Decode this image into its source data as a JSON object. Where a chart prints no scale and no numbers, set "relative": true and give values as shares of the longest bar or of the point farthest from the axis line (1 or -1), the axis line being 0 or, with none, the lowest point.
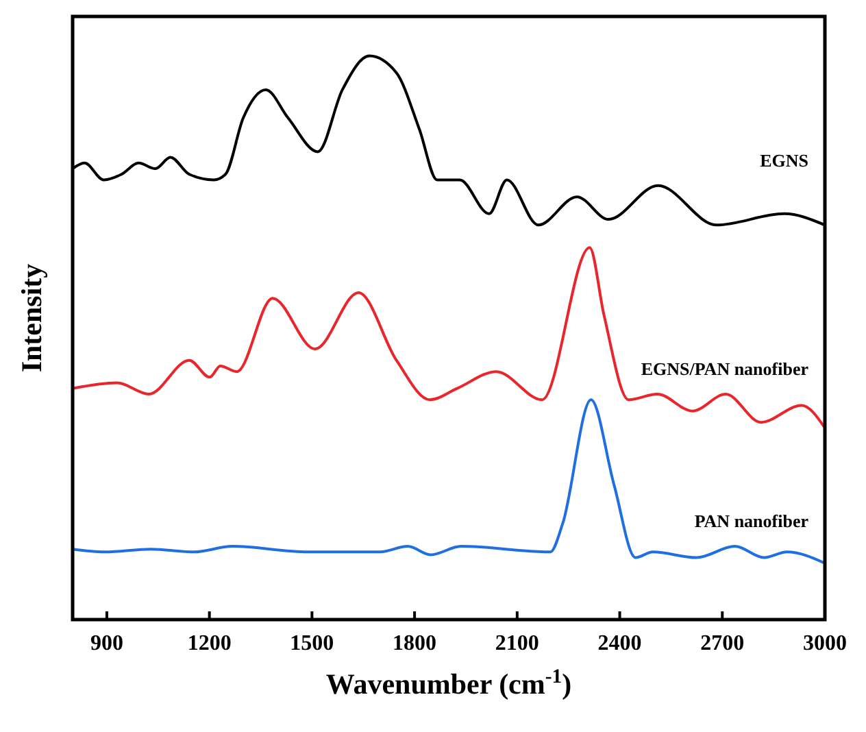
{
  "chart_data": {
    "type": "line",
    "relative": true,
    "xlabel": "Wavenumber (cm$^{-1}$)",
    "ylabel": "Intensity",
    "xlim": [
      800,
      3000
    ],
    "xticks": [
      900,
      1200,
      1500,
      1800,
      2100,
      2400,
      2700,
      3000
    ],
    "grid": false,
    "legend": false,
    "marker": "none",
    "line_style": "solid",
    "series": [
      {
        "name": "EGNS",
        "color": "#000000",
        "x": [
          800,
          835,
          891,
          943,
          993,
          1042,
          1086,
          1141,
          1213,
          1247,
          1299,
          1365,
          1430,
          1517,
          1589,
          1668,
          1747,
          1814,
          1866,
          1932,
          2018,
          2070,
          2162,
          2275,
          2367,
          2512,
          2683,
          2881,
          3000
        ],
        "values": [
          0.8,
          0.81,
          0.78,
          0.79,
          0.81,
          0.8,
          0.82,
          0.79,
          0.78,
          0.79,
          0.89,
          0.94,
          0.89,
          0.83,
          0.94,
          1.0,
          0.97,
          0.87,
          0.78,
          0.78,
          0.72,
          0.78,
          0.7,
          0.75,
          0.71,
          0.77,
          0.7,
          0.72,
          0.7
        ]
      },
      {
        "name": "EGNS/PAN nanofiber",
        "color": "#e8262b",
        "x": [
          800,
          930,
          1023,
          1141,
          1201,
          1232,
          1280,
          1385,
          1509,
          1636,
          1747,
          1845,
          1924,
          2039,
          2173,
          2312,
          2354,
          2426,
          2510,
          2613,
          2710,
          2813,
          2932,
          3000
        ],
        "values": [
          0.41,
          0.42,
          0.4,
          0.46,
          0.43,
          0.45,
          0.44,
          0.57,
          0.48,
          0.58,
          0.46,
          0.39,
          0.41,
          0.44,
          0.39,
          0.66,
          0.54,
          0.39,
          0.4,
          0.37,
          0.4,
          0.35,
          0.38,
          0.34
        ]
      },
      {
        "name": "PAN nanofiber",
        "color": "#1f6fe0",
        "x": [
          800,
          894,
          1029,
          1155,
          1267,
          1489,
          1699,
          1780,
          1847,
          1936,
          2197,
          2233,
          2316,
          2383,
          2446,
          2497,
          2624,
          2737,
          2822,
          2889,
          3000
        ],
        "values": [
          0.125,
          0.12,
          0.125,
          0.12,
          0.13,
          0.12,
          0.12,
          0.13,
          0.115,
          0.13,
          0.12,
          0.17,
          0.39,
          0.24,
          0.11,
          0.12,
          0.11,
          0.13,
          0.11,
          0.12,
          0.1
        ]
      }
    ]
  }
}
